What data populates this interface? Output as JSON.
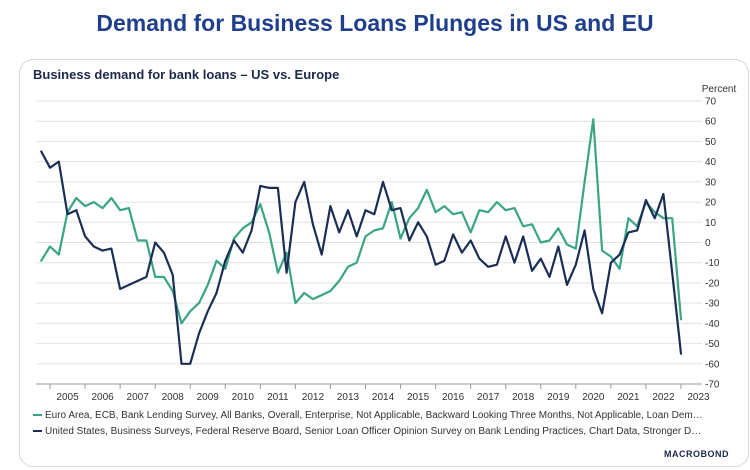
{
  "headline": "Demand for Business Loans Plunges in US and EU",
  "logo_text": "MACROBOND",
  "chart_data": {
    "type": "line",
    "title": "Business demand for bank loans – US vs. Europe",
    "ylabel": "Percent",
    "ylim": [
      -70,
      70
    ],
    "yticks": [
      -70,
      -60,
      -50,
      -40,
      -30,
      -20,
      -10,
      0,
      10,
      20,
      30,
      40,
      50,
      60,
      70
    ],
    "xlim": [
      2004.6,
      2023.6
    ],
    "xticks": [
      2005,
      2006,
      2007,
      2008,
      2009,
      2010,
      2011,
      2012,
      2013,
      2014,
      2015,
      2016,
      2017,
      2018,
      2019,
      2020,
      2021,
      2022,
      2023
    ],
    "grid": "horizontal",
    "legend_position": "bottom",
    "series": [
      {
        "name": "Euro Area, ECB, Bank Lending Survey, All Banks, Overall, Enterprise, Not Applicable, Backward Looking Three Months, Not Applicable, Loan Demand, Weighted",
        "color": "#3aa585",
        "x": [
          2004.75,
          2005.0,
          2005.25,
          2005.5,
          2005.75,
          2006.0,
          2006.25,
          2006.5,
          2006.75,
          2007.0,
          2007.25,
          2007.5,
          2007.75,
          2008.0,
          2008.25,
          2008.5,
          2008.75,
          2009.0,
          2009.25,
          2009.5,
          2009.75,
          2010.0,
          2010.25,
          2010.5,
          2010.75,
          2011.0,
          2011.25,
          2011.5,
          2011.75,
          2012.0,
          2012.25,
          2012.5,
          2012.75,
          2013.0,
          2013.25,
          2013.5,
          2013.75,
          2014.0,
          2014.25,
          2014.5,
          2014.75,
          2015.0,
          2015.25,
          2015.5,
          2015.75,
          2016.0,
          2016.25,
          2016.5,
          2016.75,
          2017.0,
          2017.25,
          2017.5,
          2017.75,
          2018.0,
          2018.25,
          2018.5,
          2018.75,
          2019.0,
          2019.25,
          2019.5,
          2019.75,
          2020.0,
          2020.25,
          2020.5,
          2020.75,
          2021.0,
          2021.25,
          2021.5,
          2021.75,
          2022.0,
          2022.25,
          2022.5,
          2022.75,
          2023.0
        ],
        "values": [
          -9,
          -2,
          -6,
          15,
          22,
          18,
          20,
          17,
          22,
          16,
          17,
          1,
          1,
          -17,
          -17,
          -24,
          -40,
          -34,
          -30,
          -21,
          -9,
          -13,
          2,
          7,
          10,
          19,
          5,
          -15,
          -5,
          -30,
          -25,
          -28,
          -26,
          -24,
          -19,
          -12,
          -10,
          3,
          6,
          7,
          20,
          2,
          12,
          17,
          26,
          15,
          18,
          14,
          15,
          5,
          16,
          15,
          20,
          16,
          17,
          8,
          9,
          0,
          1,
          7,
          -1,
          -3,
          30,
          61,
          -4,
          -7,
          -13,
          12,
          8,
          20,
          15,
          12,
          12,
          -38
        ]
      },
      {
        "name": "United States, Business Surveys, Federal Reserve Board, Senior Loan Officer Opinion Survey on Bank Lending Practices, Chart Data, Stronger Demand for Commercial and Industrial Loans",
        "color": "#1b2e55",
        "x": [
          2004.75,
          2005.0,
          2005.25,
          2005.5,
          2005.75,
          2006.0,
          2006.25,
          2006.5,
          2006.75,
          2007.0,
          2007.25,
          2007.5,
          2007.75,
          2008.0,
          2008.25,
          2008.5,
          2008.75,
          2009.0,
          2009.25,
          2009.5,
          2009.75,
          2010.0,
          2010.25,
          2010.5,
          2010.75,
          2011.0,
          2011.25,
          2011.5,
          2011.75,
          2012.0,
          2012.25,
          2012.5,
          2012.75,
          2013.0,
          2013.25,
          2013.5,
          2013.75,
          2014.0,
          2014.25,
          2014.5,
          2014.75,
          2015.0,
          2015.25,
          2015.5,
          2015.75,
          2016.0,
          2016.25,
          2016.5,
          2016.75,
          2017.0,
          2017.25,
          2017.5,
          2017.75,
          2018.0,
          2018.25,
          2018.5,
          2018.75,
          2019.0,
          2019.25,
          2019.5,
          2019.75,
          2020.0,
          2020.25,
          2020.5,
          2020.75,
          2021.0,
          2021.25,
          2021.5,
          2021.75,
          2022.0,
          2022.25,
          2022.5,
          2022.75,
          2023.0
        ],
        "values": [
          45,
          37,
          40,
          14,
          16,
          3,
          -2,
          -4,
          -3,
          -23,
          -21,
          -19,
          -17,
          0,
          -5,
          -16,
          -60,
          -60,
          -45,
          -34,
          -25,
          -9,
          1,
          -5,
          6,
          28,
          27,
          27,
          -15,
          20,
          30,
          9,
          -6,
          18,
          5,
          16,
          3,
          16,
          14,
          30,
          16,
          17,
          1,
          10,
          3,
          -11,
          -9,
          4,
          -5,
          1,
          -8,
          -12,
          -11,
          3,
          -10,
          3,
          -14,
          -8,
          -17,
          -2,
          -21,
          -11,
          6,
          -23,
          -35,
          -10,
          -6,
          5,
          6,
          21,
          12,
          24,
          -15,
          -55
        ]
      }
    ]
  }
}
